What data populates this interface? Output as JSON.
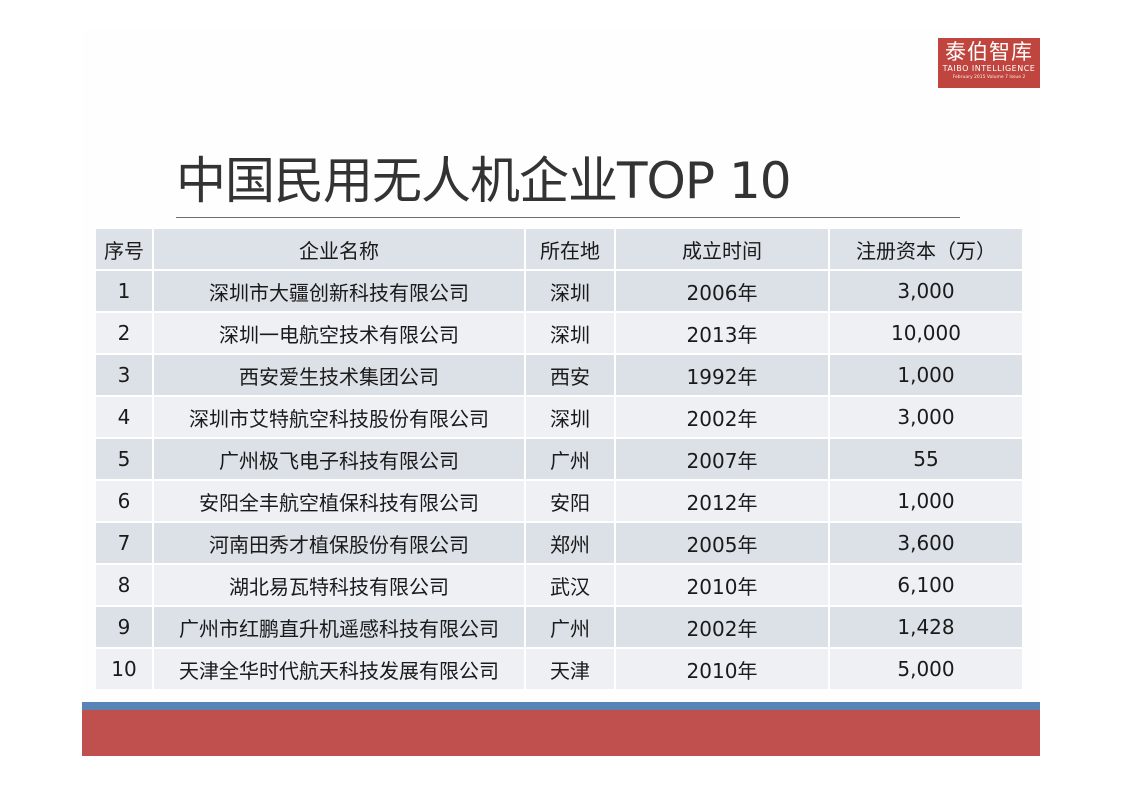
{
  "logo": {
    "text_cn": "泰伯智库",
    "text_en": "TAIBO INTELLIGENCE",
    "subtitle": "February 2015 Volume 7 Issue 2",
    "color": "#c0453f"
  },
  "title": "中国民用无人机企业TOP 10",
  "table": {
    "headers": [
      "序号",
      "企业名称",
      "所在地",
      "成立时间",
      "注册资本（万）"
    ],
    "rows": [
      [
        "1",
        "深圳市大疆创新科技有限公司",
        "深圳",
        "2006年",
        "3,000"
      ],
      [
        "2",
        "深圳一电航空技术有限公司",
        "深圳",
        "2013年",
        "10,000"
      ],
      [
        "3",
        "西安爱生技术集团公司",
        "西安",
        "1992年",
        "1,000"
      ],
      [
        "4",
        "深圳市艾特航空科技股份有限公司",
        "深圳",
        "2002年",
        "3,000"
      ],
      [
        "5",
        "广州极飞电子科技有限公司",
        "广州",
        "2007年",
        "55"
      ],
      [
        "6",
        "安阳全丰航空植保科技有限公司",
        "安阳",
        "2012年",
        "1,000"
      ],
      [
        "7",
        "河南田秀才植保股份有限公司",
        "郑州",
        "2005年",
        "3,600"
      ],
      [
        "8",
        "湖北易瓦特科技有限公司",
        "武汉",
        "2010年",
        "6,100"
      ],
      [
        "9",
        "广州市红鹏直升机遥感科技有限公司",
        "广州",
        "2002年",
        "1,428"
      ],
      [
        "10",
        "天津全华时代航天科技发展有限公司",
        "天津",
        "2010年",
        "5,000"
      ]
    ]
  },
  "colors": {
    "row_dark": "#dce1e8",
    "row_light": "#eef0f4",
    "band_blue": "#5a83b5",
    "band_red": "#c0504d"
  }
}
